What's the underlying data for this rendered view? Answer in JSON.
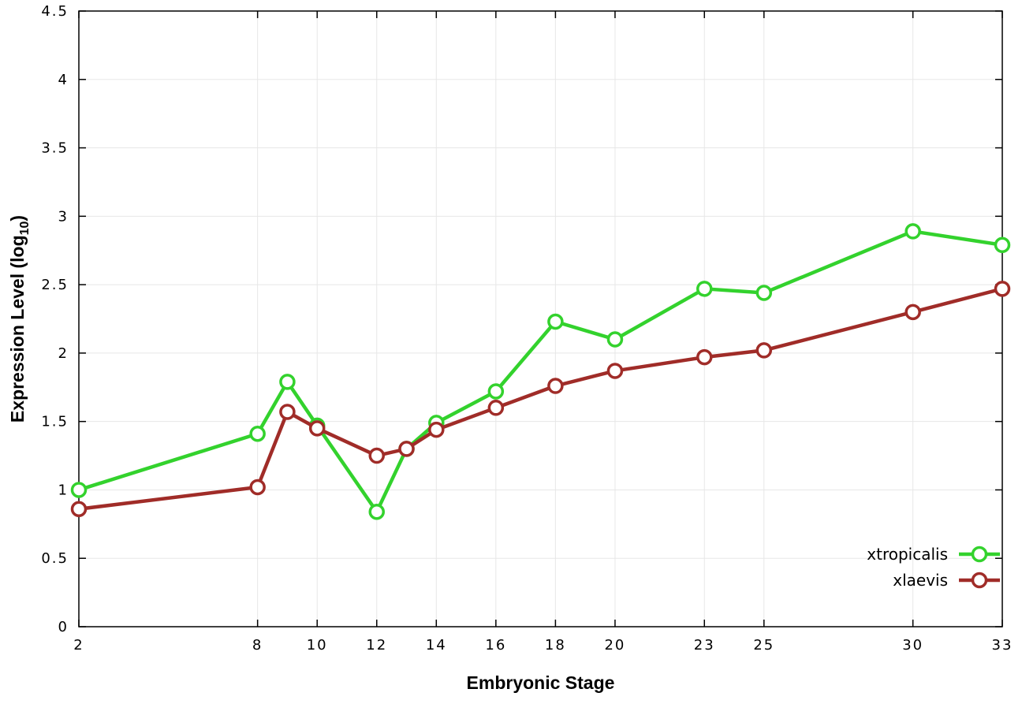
{
  "chart_data": {
    "type": "line",
    "title": "",
    "xlabel": "Embryonic Stage",
    "ylabel": {
      "pre": "Expression Level (log",
      "sub": "10",
      "post": ")"
    },
    "x": [
      2,
      8,
      9,
      10,
      12,
      13,
      14,
      16,
      18,
      20,
      23,
      25,
      30,
      33
    ],
    "xlim": [
      2,
      33
    ],
    "ylim": [
      0,
      4.5
    ],
    "xticks": [
      2,
      8,
      10,
      12,
      14,
      16,
      18,
      20,
      23,
      25,
      30,
      33
    ],
    "xtick_labels": [
      "2",
      "8",
      "10",
      "12",
      "14",
      "16",
      "18",
      "20",
      "23",
      "25",
      "30",
      "33"
    ],
    "yticks": [
      0,
      0.5,
      1,
      1.5,
      2,
      2.5,
      3,
      3.5,
      4,
      4.5
    ],
    "ytick_labels": [
      "0",
      "0.5",
      "1",
      "1.5",
      "2",
      "2.5",
      "3",
      "3.5",
      "4",
      "4.5"
    ],
    "grid": true,
    "legend_position": "bottom-right-inside",
    "series": [
      {
        "name": "xtropicalis",
        "label": "xtropicalis",
        "color": "#33d22d",
        "values": [
          1.0,
          1.41,
          1.79,
          1.47,
          0.84,
          1.3,
          1.49,
          1.72,
          2.23,
          2.1,
          2.47,
          2.44,
          2.89,
          2.79
        ]
      },
      {
        "name": "xlaevis",
        "label": "xlaevis",
        "color": "#a02c28",
        "values": [
          0.86,
          1.02,
          1.57,
          1.45,
          1.25,
          1.3,
          1.44,
          1.6,
          1.76,
          1.87,
          1.97,
          2.02,
          2.3,
          2.47
        ]
      }
    ],
    "colors": {
      "grid": "#e7e7e7",
      "axis": "#000000",
      "background": "#ffffff",
      "marker_fill": "#ffffff"
    }
  }
}
